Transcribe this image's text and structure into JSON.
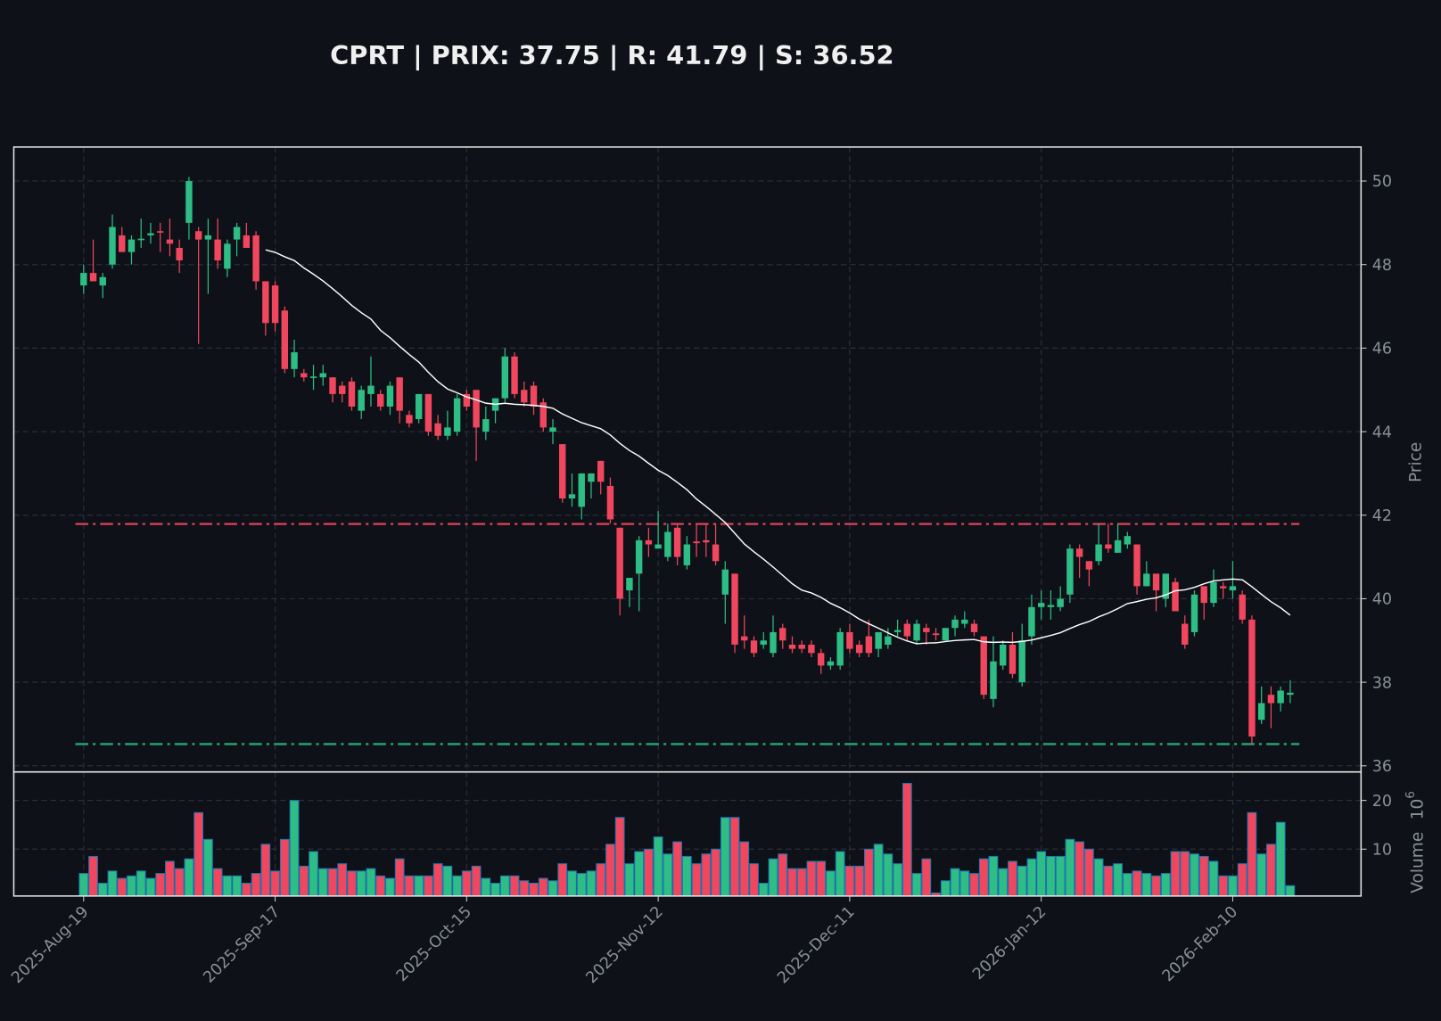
{
  "chart_data": {
    "type": "candlestick",
    "title": "CPRT | PRIX: 37.75 | R: 41.79 | S: 36.52",
    "ylabel": "Price",
    "volume_label": "Volume",
    "volume_exponent_base": "10",
    "volume_exponent": "6",
    "ylim": [
      35.9,
      50.8
    ],
    "volume_ylim": [
      0,
      25.5
    ],
    "price_ticks": [
      "36",
      "38",
      "40",
      "42",
      "44",
      "46",
      "48",
      "50"
    ],
    "volume_ticks": [
      "10",
      "20"
    ],
    "x_ticks": [
      {
        "index": 0,
        "label": "2025-Aug-19"
      },
      {
        "index": 20,
        "label": "2025-Sep-17"
      },
      {
        "index": 40,
        "label": "2025-Oct-15"
      },
      {
        "index": 60,
        "label": "2025-Nov-12"
      },
      {
        "index": 80,
        "label": "2025-Dec-11"
      },
      {
        "index": 100,
        "label": "2026-Jan-12"
      },
      {
        "index": 120,
        "label": "2026-Feb-10"
      }
    ],
    "resistance": 41.79,
    "support": 36.52,
    "moving_average_period": 20,
    "colors": {
      "up": "#2dbd85",
      "down": "#f0465e",
      "ma": "#ffffff",
      "resistance": "#e0405a",
      "support": "#26a874",
      "volume_edge": "#1f77b4",
      "background": "#0e1117"
    },
    "ohlc": [
      [
        47.5,
        48.0,
        47.3,
        47.8
      ],
      [
        47.8,
        48.6,
        47.6,
        47.6
      ],
      [
        47.5,
        47.8,
        47.2,
        47.7
      ],
      [
        48.0,
        49.2,
        47.9,
        48.9
      ],
      [
        48.7,
        48.9,
        48.3,
        48.3
      ],
      [
        48.3,
        48.7,
        48.0,
        48.6
      ],
      [
        48.6,
        49.1,
        48.4,
        48.62
      ],
      [
        48.7,
        49.0,
        48.5,
        48.75
      ],
      [
        48.8,
        49.0,
        48.3,
        48.78
      ],
      [
        48.6,
        49.1,
        48.2,
        48.5
      ],
      [
        48.4,
        48.6,
        47.8,
        48.1
      ],
      [
        49.0,
        50.1,
        48.6,
        50.0
      ],
      [
        48.8,
        48.9,
        46.1,
        48.6
      ],
      [
        48.6,
        49.1,
        47.3,
        48.7
      ],
      [
        48.6,
        49.1,
        47.9,
        48.1
      ],
      [
        47.9,
        48.6,
        47.7,
        48.5
      ],
      [
        48.6,
        49.0,
        48.2,
        48.9
      ],
      [
        48.7,
        49.0,
        48.4,
        48.4
      ],
      [
        48.7,
        48.8,
        47.4,
        47.6
      ],
      [
        47.6,
        47.6,
        46.3,
        46.6
      ],
      [
        47.5,
        47.6,
        46.4,
        46.6
      ],
      [
        46.9,
        47.0,
        45.4,
        45.5
      ],
      [
        45.5,
        46.2,
        45.3,
        45.9
      ],
      [
        45.4,
        45.5,
        45.2,
        45.3
      ],
      [
        45.3,
        45.6,
        45.0,
        45.32
      ],
      [
        45.3,
        45.6,
        45.1,
        45.4
      ],
      [
        45.3,
        45.3,
        44.7,
        44.9
      ],
      [
        45.1,
        45.2,
        44.7,
        44.9
      ],
      [
        45.2,
        45.3,
        44.5,
        44.6
      ],
      [
        44.5,
        45.1,
        44.3,
        45.0
      ],
      [
        44.9,
        45.8,
        44.6,
        45.1
      ],
      [
        44.9,
        45.0,
        44.5,
        44.6
      ],
      [
        44.6,
        45.2,
        44.4,
        45.1
      ],
      [
        45.3,
        45.3,
        44.2,
        44.5
      ],
      [
        44.4,
        44.5,
        44.1,
        44.2
      ],
      [
        44.3,
        44.9,
        44.2,
        44.9
      ],
      [
        44.9,
        44.9,
        43.9,
        44.0
      ],
      [
        44.2,
        44.4,
        43.8,
        43.9
      ],
      [
        43.9,
        44.5,
        43.8,
        44.1
      ],
      [
        44.0,
        44.9,
        43.9,
        44.8
      ],
      [
        44.9,
        45.0,
        44.5,
        44.6
      ],
      [
        45.0,
        45.0,
        43.3,
        44.1
      ],
      [
        44.0,
        44.6,
        43.8,
        44.3
      ],
      [
        44.5,
        44.8,
        44.2,
        44.8
      ],
      [
        44.8,
        46.0,
        44.7,
        45.8
      ],
      [
        45.8,
        45.9,
        44.8,
        44.9
      ],
      [
        45.0,
        45.2,
        44.6,
        44.7
      ],
      [
        45.1,
        45.2,
        44.4,
        44.6
      ],
      [
        44.7,
        44.8,
        44.0,
        44.1
      ],
      [
        44.0,
        44.3,
        43.7,
        44.1
      ],
      [
        43.7,
        43.7,
        42.3,
        42.4
      ],
      [
        42.4,
        43.0,
        42.2,
        42.5
      ],
      [
        42.2,
        43.0,
        41.9,
        43.0
      ],
      [
        42.8,
        43.0,
        42.4,
        43.0
      ],
      [
        43.3,
        43.3,
        42.5,
        42.8
      ],
      [
        42.7,
        42.9,
        41.8,
        41.9
      ],
      [
        41.7,
        41.7,
        39.6,
        40.0
      ],
      [
        40.2,
        40.5,
        39.8,
        40.5
      ],
      [
        40.6,
        41.5,
        39.7,
        41.4
      ],
      [
        41.4,
        41.7,
        41.0,
        41.3
      ],
      [
        41.2,
        42.1,
        41.2,
        41.3
      ],
      [
        41.0,
        41.8,
        40.9,
        41.6
      ],
      [
        41.7,
        41.8,
        40.8,
        41.0
      ],
      [
        40.8,
        41.5,
        40.7,
        41.3
      ],
      [
        41.37,
        41.8,
        41.0,
        41.33
      ],
      [
        41.4,
        41.8,
        41.0,
        41.35
      ],
      [
        41.3,
        41.8,
        40.8,
        40.9
      ],
      [
        40.1,
        40.9,
        39.4,
        40.7
      ],
      [
        40.6,
        40.6,
        38.7,
        38.9
      ],
      [
        39.1,
        39.6,
        38.8,
        39.0
      ],
      [
        39.0,
        39.1,
        38.6,
        38.7
      ],
      [
        38.9,
        39.2,
        38.8,
        39.0
      ],
      [
        38.7,
        39.6,
        38.6,
        39.2
      ],
      [
        39.3,
        39.4,
        38.8,
        39.0
      ],
      [
        38.9,
        39.1,
        38.7,
        38.8
      ],
      [
        38.9,
        39.0,
        38.7,
        38.8
      ],
      [
        38.9,
        39.0,
        38.6,
        38.7
      ],
      [
        38.7,
        38.8,
        38.2,
        38.4
      ],
      [
        38.4,
        38.6,
        38.3,
        38.5
      ],
      [
        38.4,
        39.3,
        38.3,
        39.2
      ],
      [
        39.2,
        39.4,
        38.7,
        38.8
      ],
      [
        38.9,
        39.0,
        38.6,
        38.7
      ],
      [
        39.1,
        39.5,
        38.6,
        38.7
      ],
      [
        38.8,
        39.2,
        38.6,
        39.2
      ],
      [
        38.9,
        39.3,
        38.8,
        39.1
      ],
      [
        39.2,
        39.5,
        39.1,
        39.25
      ],
      [
        39.4,
        39.5,
        39.0,
        39.1
      ],
      [
        39.0,
        39.5,
        38.9,
        39.4
      ],
      [
        39.3,
        39.4,
        38.9,
        39.2
      ],
      [
        39.17,
        39.3,
        39.0,
        39.13
      ],
      [
        39.0,
        39.3,
        39.0,
        39.3
      ],
      [
        39.3,
        39.6,
        39.1,
        39.5
      ],
      [
        39.4,
        39.7,
        39.3,
        39.5
      ],
      [
        39.4,
        39.5,
        39.1,
        39.2
      ],
      [
        39.1,
        39.1,
        37.6,
        37.7
      ],
      [
        37.6,
        39.1,
        37.4,
        38.5
      ],
      [
        38.4,
        39.0,
        38.3,
        38.9
      ],
      [
        38.9,
        39.2,
        38.1,
        38.2
      ],
      [
        38.0,
        39.4,
        37.9,
        39.0
      ],
      [
        39.1,
        40.1,
        38.9,
        39.8
      ],
      [
        39.8,
        40.2,
        39.5,
        39.9
      ],
      [
        39.8,
        40.2,
        39.5,
        39.85
      ],
      [
        39.8,
        40.3,
        39.7,
        40.0
      ],
      [
        40.1,
        41.3,
        39.9,
        41.2
      ],
      [
        41.2,
        41.3,
        40.5,
        41.0
      ],
      [
        40.9,
        40.9,
        40.3,
        40.7
      ],
      [
        40.9,
        41.8,
        40.8,
        41.3
      ],
      [
        41.3,
        41.8,
        41.1,
        41.2
      ],
      [
        41.1,
        41.8,
        41.1,
        41.4
      ],
      [
        41.3,
        41.6,
        41.2,
        41.5
      ],
      [
        41.3,
        41.3,
        40.1,
        40.3
      ],
      [
        40.3,
        40.9,
        40.3,
        40.6
      ],
      [
        40.6,
        40.6,
        39.7,
        40.2
      ],
      [
        40.0,
        40.6,
        39.8,
        40.6
      ],
      [
        40.4,
        40.5,
        39.7,
        39.7
      ],
      [
        39.4,
        39.6,
        38.8,
        38.9
      ],
      [
        39.2,
        40.2,
        39.1,
        40.1
      ],
      [
        40.3,
        40.3,
        39.5,
        39.9
      ],
      [
        39.9,
        40.7,
        39.8,
        40.4
      ],
      [
        40.3,
        40.4,
        40.0,
        40.25
      ],
      [
        40.2,
        40.9,
        40.0,
        40.3
      ],
      [
        40.1,
        40.2,
        39.4,
        39.5
      ],
      [
        39.5,
        39.6,
        36.5,
        36.7
      ],
      [
        37.1,
        37.9,
        37.0,
        37.5
      ],
      [
        37.7,
        37.9,
        36.9,
        37.5
      ],
      [
        37.5,
        37.9,
        37.3,
        37.8
      ],
      [
        37.7,
        38.05,
        37.5,
        37.75
      ]
    ],
    "volume": [
      5,
      8.5,
      3,
      5.5,
      4,
      4.5,
      5.5,
      4,
      5,
      7.5,
      6,
      8,
      17.5,
      12,
      6,
      4.5,
      4.5,
      3,
      5,
      11,
      5.5,
      12,
      20,
      6.5,
      9.5,
      6,
      6,
      7,
      5.5,
      5.5,
      6,
      4.5,
      4,
      8,
      4.5,
      4.5,
      4.5,
      7,
      6.5,
      4.5,
      5.5,
      6.5,
      4,
      3,
      4.5,
      4.5,
      3.5,
      3,
      4,
      3.5,
      7,
      5.5,
      5,
      5.5,
      7,
      11,
      16.5,
      7,
      9.5,
      10,
      12.5,
      9,
      11.5,
      8.5,
      7,
      9,
      10,
      16.5,
      16.5,
      11.5,
      7,
      3,
      8,
      9,
      6,
      6,
      7.5,
      7.5,
      5.5,
      9.5,
      6.5,
      6.5,
      10,
      11,
      9,
      7,
      23.5,
      5,
      8,
      1,
      3.5,
      6,
      5.5,
      5,
      8,
      8.5,
      6,
      7.5,
      6.5,
      8,
      9.5,
      8.5,
      8.5,
      12,
      11.5,
      10,
      8,
      6.5,
      7,
      5,
      5.5,
      5,
      4.5,
      5,
      9.5,
      9.5,
      9,
      8.5,
      7.5,
      4.5,
      4.5,
      7,
      17.5,
      9,
      11,
      15.5,
      2.5
    ]
  }
}
